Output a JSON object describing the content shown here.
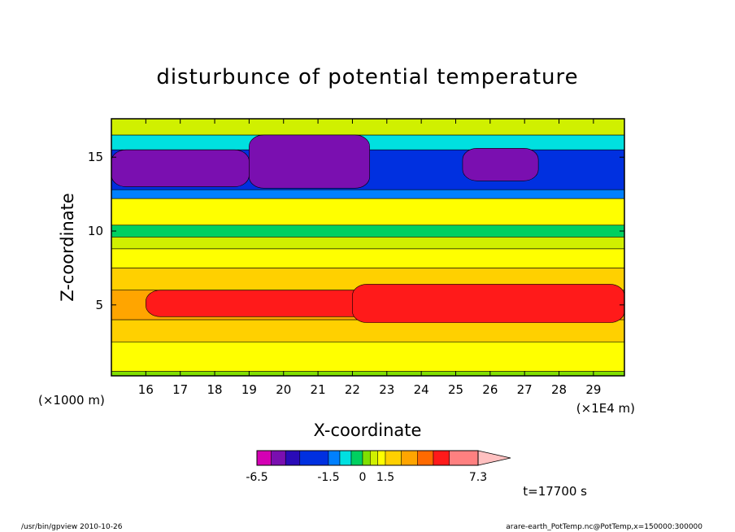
{
  "chart_data": {
    "type": "heatmap",
    "title": "disturbunce of potential temperature",
    "xlabel": "X-coordinate",
    "ylabel": "Z-coordinate",
    "x_unit_left": "(×1000 m)",
    "x_unit_right": "(×1E4 m)",
    "x_ticks": [
      16,
      17,
      18,
      19,
      20,
      21,
      22,
      23,
      24,
      25,
      26,
      27,
      28,
      29
    ],
    "y_ticks": [
      5,
      10,
      15
    ],
    "xlim": [
      15.0,
      29.9
    ],
    "ylim": [
      0.2,
      17.6
    ],
    "colorbar": {
      "levels": [
        -6.5,
        -5.5,
        -4.5,
        -3.5,
        -1.5,
        -1.0,
        -0.5,
        0,
        0.5,
        1.0,
        1.5,
        2.5,
        3.5,
        4.5,
        5.5,
        7.3
      ],
      "colors": [
        "#d400b4",
        "#7a0fb0",
        "#2a0bb8",
        "#0030e0",
        "#0080ff",
        "#00e0e0",
        "#00d060",
        "#80e000",
        "#d0f000",
        "#ffff00",
        "#ffd000",
        "#ffa500",
        "#ff6a00",
        "#ff1a1a",
        "#ff8080",
        "#ffc0c0"
      ],
      "tick_labels": [
        "-6.5",
        "-1.5",
        "0",
        "1.5",
        "7.3"
      ],
      "tick_values": [
        -6.5,
        -1.5,
        0,
        1.5,
        7.3
      ]
    },
    "bands": [
      {
        "z": [
          0.2,
          0.5
        ],
        "value": 0
      },
      {
        "z": [
          0.5,
          2.5
        ],
        "value": 1.2
      },
      {
        "z": [
          2.5,
          4.0
        ],
        "value": 2.0
      },
      {
        "z": [
          4.0,
          6.0
        ],
        "value": 3.0
      },
      {
        "z": [
          6.0,
          7.5
        ],
        "value": 2.0
      },
      {
        "z": [
          7.5,
          8.8
        ],
        "value": 1.2
      },
      {
        "z": [
          8.8,
          9.6
        ],
        "value": 0.6
      },
      {
        "z": [
          9.6,
          10.4
        ],
        "value": -0.4
      },
      {
        "z": [
          10.4,
          12.2
        ],
        "value": 1.0
      },
      {
        "z": [
          12.2,
          12.8
        ],
        "value": -1.2
      },
      {
        "z": [
          12.8,
          15.5
        ],
        "value": -3.2
      },
      {
        "z": [
          15.5,
          16.5
        ],
        "value": -0.8
      },
      {
        "z": [
          16.5,
          17.6
        ],
        "value": 0.8
      }
    ],
    "cold_cells": [
      {
        "x": [
          15.0,
          19.0
        ],
        "z": [
          13.0,
          15.5
        ],
        "value": -4.6
      },
      {
        "x": [
          19.0,
          22.5
        ],
        "z": [
          12.9,
          16.5
        ],
        "value": -4.6
      },
      {
        "x": [
          25.2,
          27.4
        ],
        "z": [
          13.4,
          15.6
        ],
        "value": -4.6
      }
    ],
    "warm_cells": [
      {
        "x": [
          16.0,
          29.9
        ],
        "z": [
          4.2,
          6.0
        ],
        "value": 4.6
      },
      {
        "x": [
          22.0,
          29.9
        ],
        "z": [
          3.8,
          6.4
        ],
        "value": 4.6
      }
    ],
    "note": "t=17700 s"
  },
  "footer": {
    "left": "/usr/bin/gpview   2010-10-26",
    "right": "arare-earth_PotTemp.nc@PotTemp,x=150000:300000"
  }
}
